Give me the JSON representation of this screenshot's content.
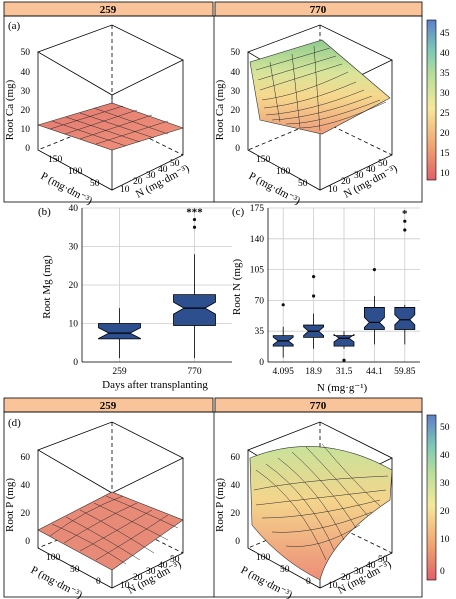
{
  "panels": {
    "a": {
      "letter": "(a)",
      "facets": [
        "259",
        "770"
      ],
      "zlabel": "Root Ca (mg)",
      "xlabel": "P (mg·dm⁻³)",
      "ylabel": "N (mg·dm⁻³)",
      "zticks": [
        "0",
        "10",
        "20",
        "30",
        "40",
        "50"
      ],
      "pticks": [
        "150",
        "100",
        "50"
      ],
      "nticks": [
        "50",
        "40",
        "30",
        "20",
        "10"
      ],
      "colorbar": {
        "ticks": [
          "45",
          "40",
          "35",
          "30",
          "25",
          "20",
          "15",
          "10"
        ],
        "range": [
          8,
          47
        ]
      }
    },
    "b": {
      "letter": "(b)",
      "ylabel": "Root Mg (mg)",
      "xlabel": "Days after transplanting",
      "categories": [
        "259",
        "770"
      ],
      "yticks": [
        "0",
        "10",
        "20",
        "30",
        "40"
      ],
      "sig": "***"
    },
    "c": {
      "letter": "(c)",
      "ylabel": "Root N (mg)",
      "xlabel": "N (mg·g⁻¹)",
      "categories": [
        "4.095",
        "18.9",
        "31.5",
        "44.1",
        "59.85"
      ],
      "yticks": [
        "0",
        "35",
        "70",
        "105",
        "140",
        "175"
      ],
      "sig": "*"
    },
    "d": {
      "letter": "(d)",
      "facets": [
        "259",
        "770"
      ],
      "zlabel": "Root P (mg)",
      "xlabel": "P (mg·dm⁻³)",
      "ylabel": "N (mg·dm⁻³)",
      "zticks": [
        "0",
        "20",
        "40",
        "60"
      ],
      "pticks": [
        "100",
        "50",
        "0"
      ],
      "nticks": [
        "50",
        "40",
        "30",
        "20",
        "10"
      ],
      "colorbar": {
        "ticks": [
          "50",
          "40",
          "30",
          "20",
          "10",
          "0"
        ],
        "range": [
          -2,
          58
        ]
      }
    }
  },
  "chart_data": [
    {
      "type": "surface",
      "panel": "a",
      "facet": "259",
      "zlabel": "Root Ca (mg)",
      "zlim": [
        0,
        50
      ],
      "z_range_estimate": [
        8,
        14
      ]
    },
    {
      "type": "surface",
      "panel": "a",
      "facet": "770",
      "zlabel": "Root Ca (mg)",
      "zlim": [
        0,
        50
      ],
      "z_range_estimate": [
        10,
        42
      ]
    },
    {
      "type": "box",
      "panel": "b",
      "ylabel": "Root Mg (mg)",
      "xlabel": "Days after transplanting",
      "ylim": [
        0,
        40
      ],
      "categories": [
        "259",
        "770"
      ],
      "stats": [
        {
          "min": 1,
          "q1": 6,
          "median": 7.5,
          "q3": 10,
          "max": 14,
          "outliers": []
        },
        {
          "min": 1,
          "q1": 9.5,
          "median": 14,
          "q3": 17.5,
          "max": 28,
          "outliers": [
            35,
            37
          ]
        }
      ]
    },
    {
      "type": "box",
      "panel": "c",
      "ylabel": "Root N (mg)",
      "xlabel": "N (mg·g⁻¹)",
      "ylim": [
        0,
        175
      ],
      "categories": [
        "4.095",
        "18.9",
        "31.5",
        "44.1",
        "59.85"
      ],
      "stats": [
        {
          "min": 5,
          "q1": 18,
          "median": 24,
          "q3": 30,
          "max": 40,
          "outliers": [
            65
          ]
        },
        {
          "min": 15,
          "q1": 28,
          "median": 35,
          "q3": 42,
          "max": 55,
          "outliers": [
            75,
            97
          ]
        },
        {
          "min": 15,
          "q1": 18,
          "median": 27,
          "q3": 30,
          "max": 35,
          "outliers": [
            2
          ]
        },
        {
          "min": 20,
          "q1": 37,
          "median": 45,
          "q3": 62,
          "max": 75,
          "outliers": [
            105
          ]
        },
        {
          "min": 20,
          "q1": 37,
          "median": 48,
          "q3": 62,
          "max": 65,
          "outliers": [
            150,
            160
          ]
        }
      ]
    },
    {
      "type": "surface",
      "panel": "d",
      "facet": "259",
      "zlabel": "Root P (mg)",
      "zlim": [
        0,
        60
      ],
      "z_range_estimate": [
        3,
        20
      ]
    },
    {
      "type": "surface",
      "panel": "d",
      "facet": "770",
      "zlabel": "Root P (mg)",
      "zlim": [
        0,
        60
      ],
      "z_range_estimate": [
        5,
        40
      ]
    }
  ]
}
